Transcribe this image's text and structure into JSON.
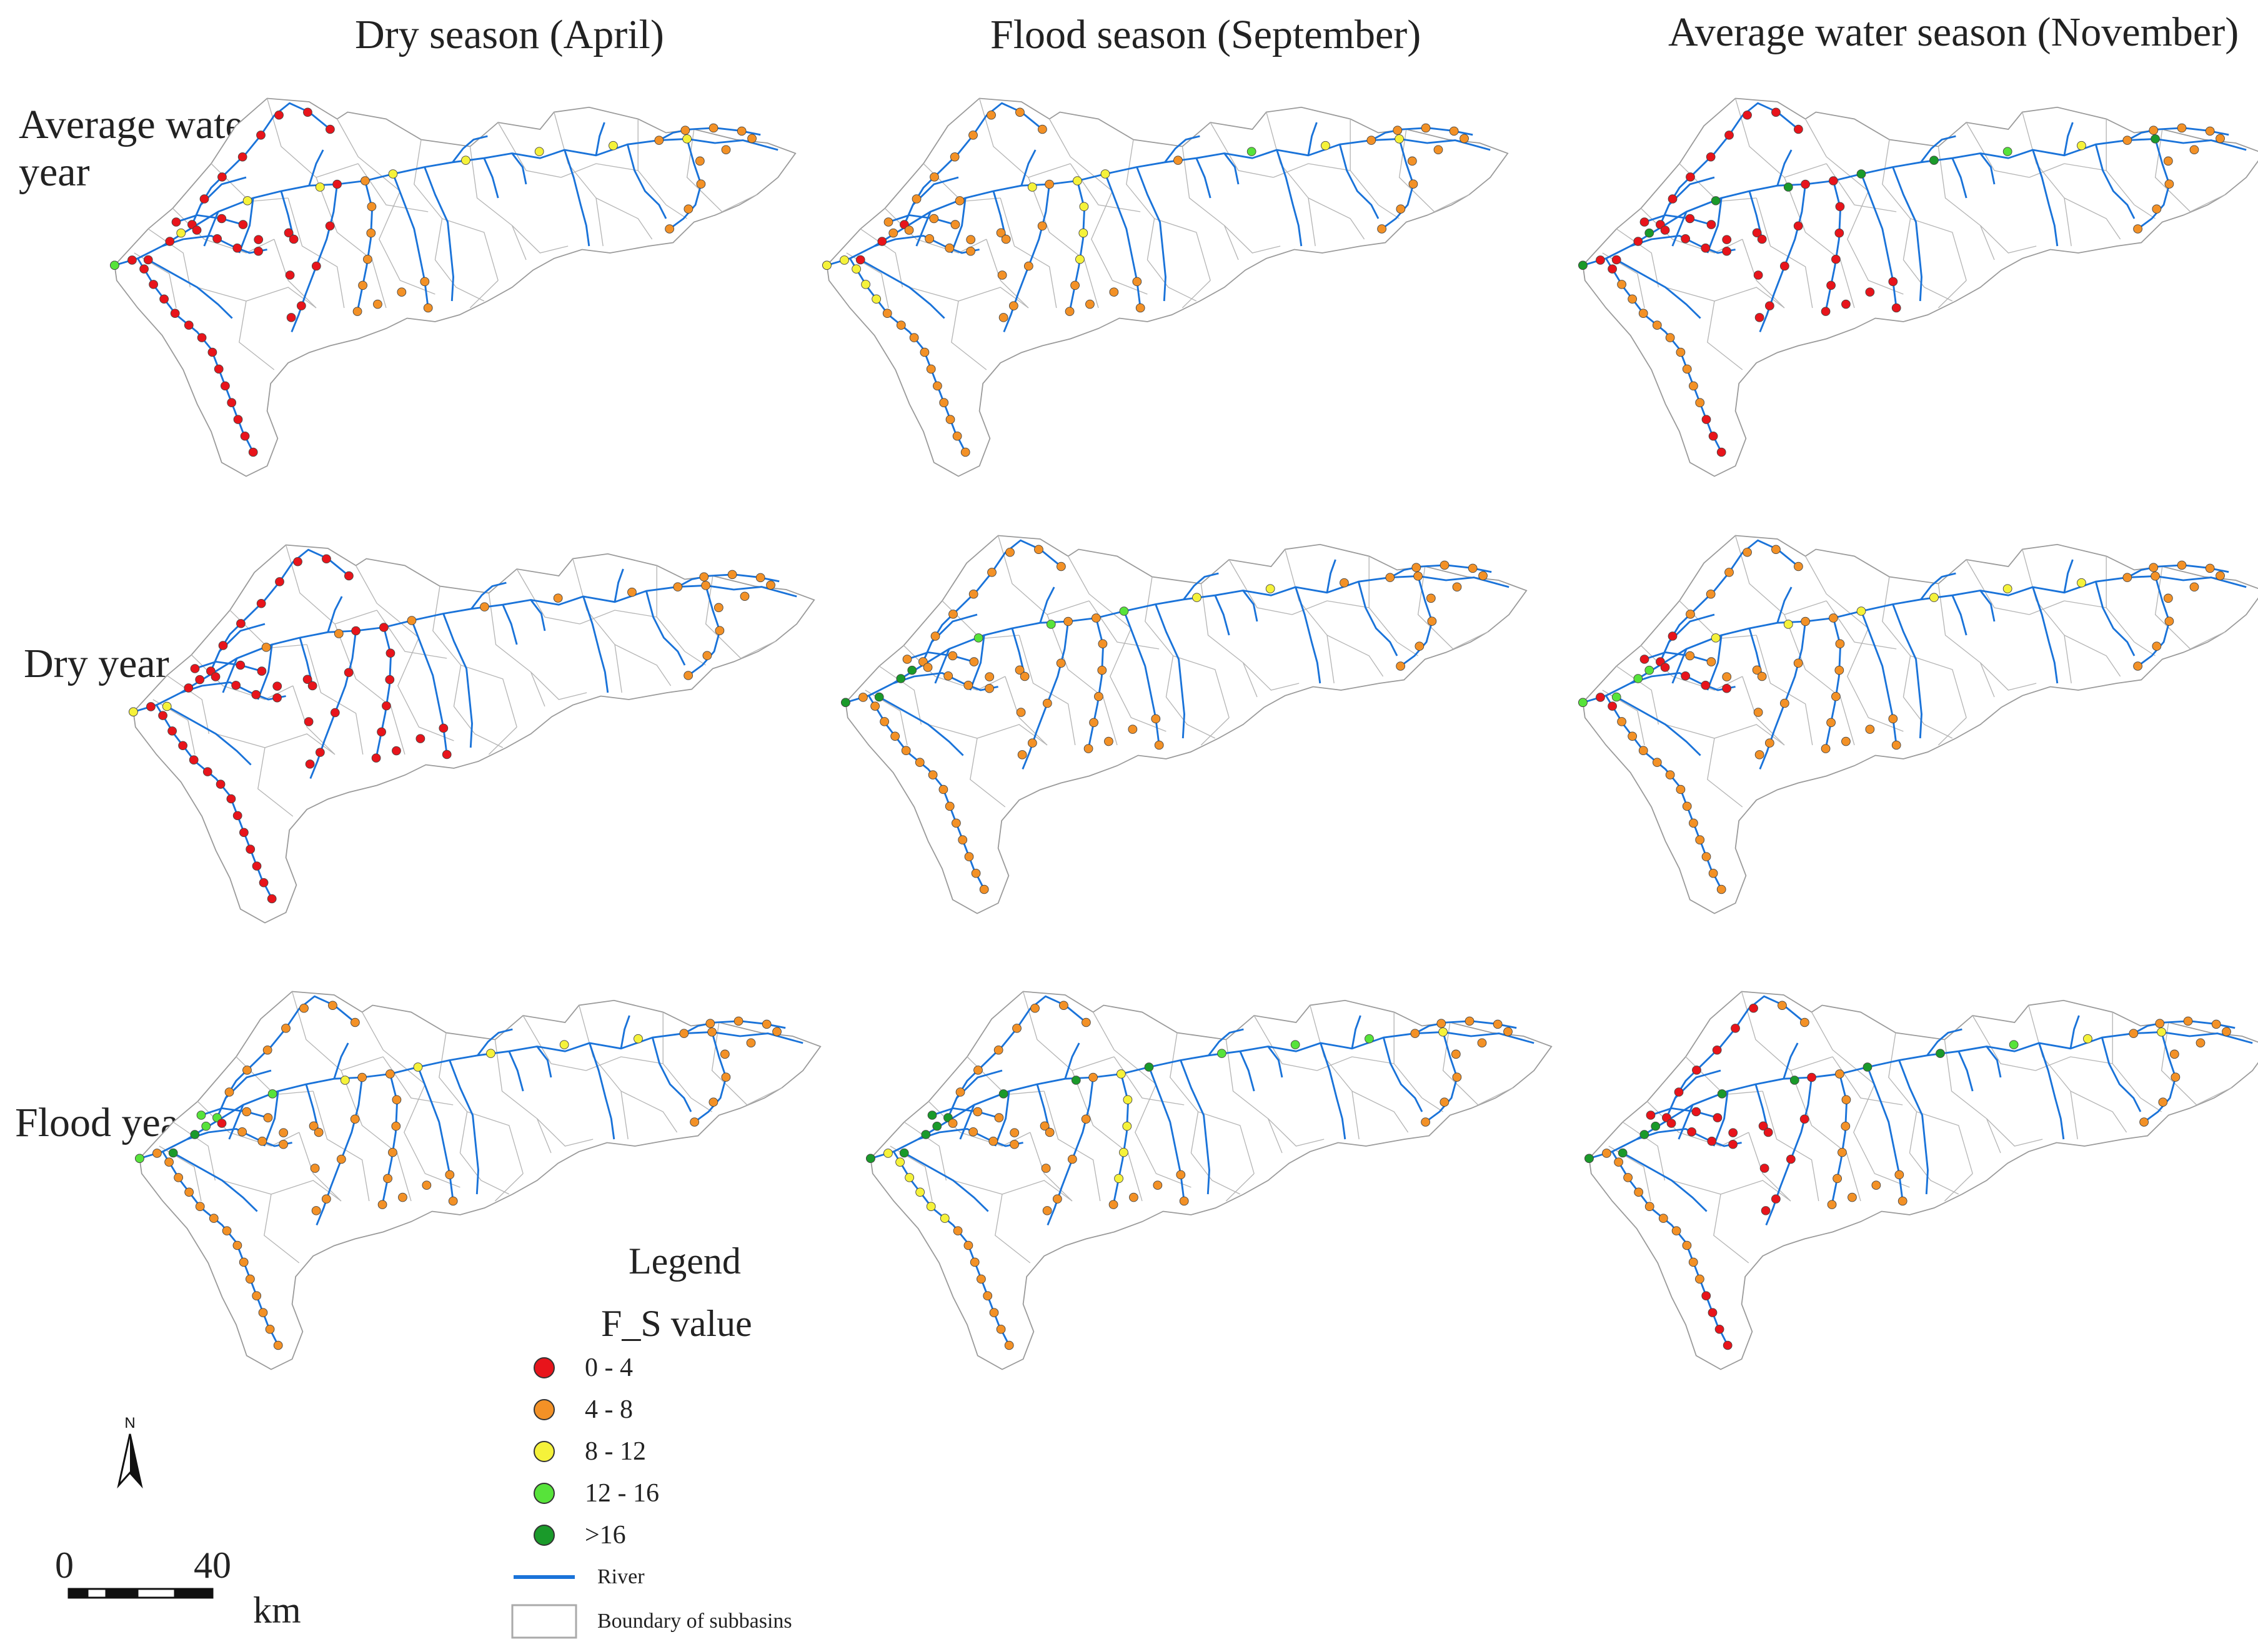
{
  "columns": [
    "Dry season (April)",
    "Flood season (September)",
    "Average water season (November)"
  ],
  "rows": [
    {
      "label_lines": [
        "Average water",
        "year"
      ]
    },
    {
      "label_lines": [
        "Dry year"
      ]
    },
    {
      "label_lines": [
        "Flood year"
      ]
    }
  ],
  "legend": {
    "title": "Legend",
    "subtitle": "F_S value",
    "classes": [
      {
        "label": "0 - 4",
        "color": "#e8141b"
      },
      {
        "label": "4 - 8",
        "color": "#f39126"
      },
      {
        "label": "8 - 12",
        "color": "#f5f23a"
      },
      {
        "label": "12 - 16",
        "color": "#57e33a"
      },
      {
        "label": ">16",
        "color": "#1a9a2a"
      }
    ],
    "river_label": "River",
    "river_color": "#1a73d9",
    "boundary_label": "Boundary of subbasins",
    "boundary_color": "#aaaaaa"
  },
  "north_arrow": {
    "label": "N"
  },
  "scale_bar": {
    "start": "0",
    "end": "40",
    "unit": "km"
  },
  "panels": [
    {
      "row": 0,
      "col": 0,
      "chains": [
        [
          "r",
          "r",
          "r",
          "r",
          "r",
          "r",
          "r",
          "r",
          "r",
          "r",
          "r",
          "r",
          "r",
          "r",
          "r"
        ],
        [
          "r",
          "r",
          "r",
          "r",
          "r",
          "r",
          "r",
          "r",
          "r",
          "r"
        ],
        [
          "r",
          "r",
          "r",
          "r",
          "r",
          "r",
          "r",
          "r"
        ],
        [
          "g",
          "y",
          "y",
          "y",
          "y",
          "y",
          "y",
          "y",
          "y"
        ],
        [
          "o",
          "o",
          "o",
          "o",
          "o",
          "o",
          "o",
          "o",
          "o",
          "o"
        ],
        [
          "r",
          "r",
          "r",
          "r",
          "r",
          "r",
          "r",
          "r"
        ],
        [
          "o",
          "o",
          "o",
          "o",
          "o",
          "o",
          "o",
          "o",
          "o",
          "o"
        ]
      ]
    },
    {
      "row": 0,
      "col": 1,
      "chains": [
        [
          "y",
          "y",
          "y",
          "y",
          "y",
          "o",
          "o",
          "o",
          "o",
          "o",
          "o",
          "o",
          "o",
          "o",
          "o"
        ],
        [
          "r",
          "r",
          "r",
          "o",
          "o",
          "o",
          "o",
          "o",
          "o",
          "o"
        ],
        [
          "o",
          "o",
          "o",
          "o",
          "o",
          "o",
          "o",
          "o"
        ],
        [
          "y",
          "o",
          "o",
          "y",
          "y",
          "o",
          "g",
          "y",
          "y"
        ],
        [
          "y",
          "y",
          "y",
          "y",
          "o",
          "o",
          "o",
          "o",
          "o",
          "o"
        ],
        [
          "o",
          "o",
          "o",
          "o",
          "o",
          "o",
          "o",
          "o"
        ],
        [
          "o",
          "o",
          "o",
          "o",
          "o",
          "o",
          "o",
          "o",
          "o",
          "o"
        ]
      ]
    },
    {
      "row": 0,
      "col": 2,
      "chains": [
        [
          "r",
          "r",
          "r",
          "o",
          "o",
          "o",
          "o",
          "o",
          "o",
          "o",
          "o",
          "o",
          "r",
          "r",
          "r"
        ],
        [
          "r",
          "r",
          "r",
          "r",
          "r",
          "r",
          "r",
          "r",
          "r",
          "r"
        ],
        [
          "r",
          "r",
          "r",
          "r",
          "r",
          "r",
          "r",
          "r"
        ],
        [
          "d",
          "d",
          "d",
          "d",
          "d",
          "d",
          "g",
          "y",
          "d"
        ],
        [
          "r",
          "r",
          "r",
          "r",
          "r",
          "r",
          "r",
          "r",
          "r",
          "r"
        ],
        [
          "r",
          "r",
          "r",
          "r",
          "r",
          "r",
          "r",
          "r"
        ],
        [
          "o",
          "o",
          "o",
          "o",
          "o",
          "o",
          "o",
          "o",
          "o",
          "o"
        ]
      ]
    },
    {
      "row": 1,
      "col": 0,
      "chains": [
        [
          "r",
          "r",
          "r",
          "r",
          "r",
          "r",
          "r",
          "r",
          "r",
          "r",
          "r",
          "r",
          "r",
          "r",
          "r"
        ],
        [
          "y",
          "r",
          "r",
          "r",
          "r",
          "r",
          "r",
          "r",
          "r",
          "r"
        ],
        [
          "r",
          "r",
          "r",
          "r",
          "r",
          "r",
          "r",
          "r"
        ],
        [
          "y",
          "r",
          "o",
          "o",
          "o",
          "o",
          "o",
          "o",
          "o"
        ],
        [
          "r",
          "r",
          "r",
          "r",
          "r",
          "r",
          "r",
          "r",
          "r",
          "r"
        ],
        [
          "r",
          "r",
          "r",
          "r",
          "r",
          "r",
          "r",
          "r"
        ],
        [
          "o",
          "o",
          "o",
          "o",
          "o",
          "o",
          "o",
          "o",
          "o",
          "o"
        ]
      ]
    },
    {
      "row": 1,
      "col": 1,
      "chains": [
        [
          "d",
          "o",
          "o",
          "o",
          "o",
          "o",
          "o",
          "o",
          "o",
          "o",
          "o",
          "o",
          "o",
          "o",
          "o"
        ],
        [
          "d",
          "d",
          "o",
          "o",
          "o",
          "o",
          "o",
          "o",
          "o",
          "o"
        ],
        [
          "o",
          "o",
          "o",
          "o",
          "o",
          "o",
          "o",
          "o"
        ],
        [
          "d",
          "d",
          "g",
          "g",
          "g",
          "y",
          "y",
          "o",
          "o"
        ],
        [
          "o",
          "o",
          "o",
          "o",
          "o",
          "o",
          "o",
          "o",
          "o",
          "o"
        ],
        [
          "o",
          "o",
          "o",
          "o",
          "o",
          "o",
          "o",
          "o"
        ],
        [
          "o",
          "o",
          "o",
          "o",
          "o",
          "o",
          "o",
          "o",
          "o",
          "o"
        ]
      ]
    },
    {
      "row": 1,
      "col": 2,
      "chains": [
        [
          "g",
          "r",
          "r",
          "o",
          "o",
          "o",
          "o",
          "o",
          "o",
          "o",
          "o",
          "o",
          "o",
          "o",
          "o"
        ],
        [
          "g",
          "g",
          "r",
          "r",
          "o",
          "o",
          "o",
          "o",
          "o",
          "o"
        ],
        [
          "r",
          "r",
          "r",
          "r",
          "r",
          "o",
          "o",
          "o"
        ],
        [
          "g",
          "g",
          "y",
          "y",
          "y",
          "y",
          "y",
          "y",
          "o"
        ],
        [
          "o",
          "o",
          "o",
          "o",
          "o",
          "o",
          "o",
          "o",
          "o",
          "o"
        ],
        [
          "o",
          "o",
          "o",
          "o",
          "o",
          "o",
          "o",
          "o"
        ],
        [
          "o",
          "o",
          "o",
          "o",
          "o",
          "o",
          "o",
          "o",
          "o",
          "o"
        ]
      ]
    },
    {
      "row": 2,
      "col": 0,
      "chains": [
        [
          "d",
          "o",
          "o",
          "o",
          "o",
          "o",
          "o",
          "o",
          "o",
          "o",
          "o",
          "o",
          "o",
          "o",
          "o"
        ],
        [
          "d",
          "d",
          "g",
          "o",
          "o",
          "o",
          "o",
          "o",
          "o",
          "o"
        ],
        [
          "g",
          "r",
          "o",
          "o",
          "o",
          "o",
          "o",
          "o"
        ],
        [
          "g",
          "g",
          "g",
          "y",
          "y",
          "y",
          "y",
          "y",
          "o"
        ],
        [
          "o",
          "o",
          "o",
          "o",
          "o",
          "o",
          "o",
          "o",
          "o",
          "o"
        ],
        [
          "o",
          "o",
          "o",
          "o",
          "o",
          "o",
          "o",
          "o"
        ],
        [
          "o",
          "o",
          "o",
          "o",
          "o",
          "o",
          "o",
          "o",
          "o",
          "o"
        ]
      ]
    },
    {
      "row": 2,
      "col": 1,
      "chains": [
        [
          "y",
          "y",
          "y",
          "y",
          "y",
          "y",
          "y",
          "o",
          "o",
          "o",
          "o",
          "o",
          "o",
          "o",
          "o"
        ],
        [
          "d",
          "d",
          "d",
          "o",
          "o",
          "o",
          "o",
          "o",
          "o",
          "o"
        ],
        [
          "d",
          "o",
          "o",
          "o",
          "o",
          "o",
          "o",
          "o"
        ],
        [
          "d",
          "d",
          "d",
          "d",
          "d",
          "g",
          "g",
          "g",
          "y"
        ],
        [
          "y",
          "y",
          "y",
          "y",
          "y",
          "o",
          "o",
          "o",
          "o",
          "o"
        ],
        [
          "o",
          "o",
          "o",
          "o",
          "o",
          "o",
          "o",
          "o"
        ],
        [
          "o",
          "o",
          "o",
          "o",
          "o",
          "o",
          "o",
          "o",
          "o",
          "o"
        ]
      ]
    },
    {
      "row": 2,
      "col": 2,
      "chains": [
        [
          "d",
          "o",
          "o",
          "o",
          "o",
          "o",
          "o",
          "o",
          "o",
          "o",
          "o",
          "r",
          "r",
          "r",
          "r"
        ],
        [
          "d",
          "d",
          "r",
          "r",
          "r",
          "r",
          "r",
          "r",
          "o",
          "o"
        ],
        [
          "r",
          "r",
          "r",
          "r",
          "r",
          "r",
          "r",
          "r"
        ],
        [
          "d",
          "d",
          "d",
          "d",
          "d",
          "d",
          "g",
          "y",
          "y"
        ],
        [
          "o",
          "o",
          "o",
          "o",
          "o",
          "o",
          "o",
          "o",
          "o",
          "o"
        ],
        [
          "r",
          "r",
          "r",
          "r",
          "r",
          "r",
          "r",
          "r"
        ],
        [
          "o",
          "o",
          "o",
          "o",
          "o",
          "o",
          "o",
          "o",
          "o",
          "o"
        ]
      ]
    }
  ]
}
